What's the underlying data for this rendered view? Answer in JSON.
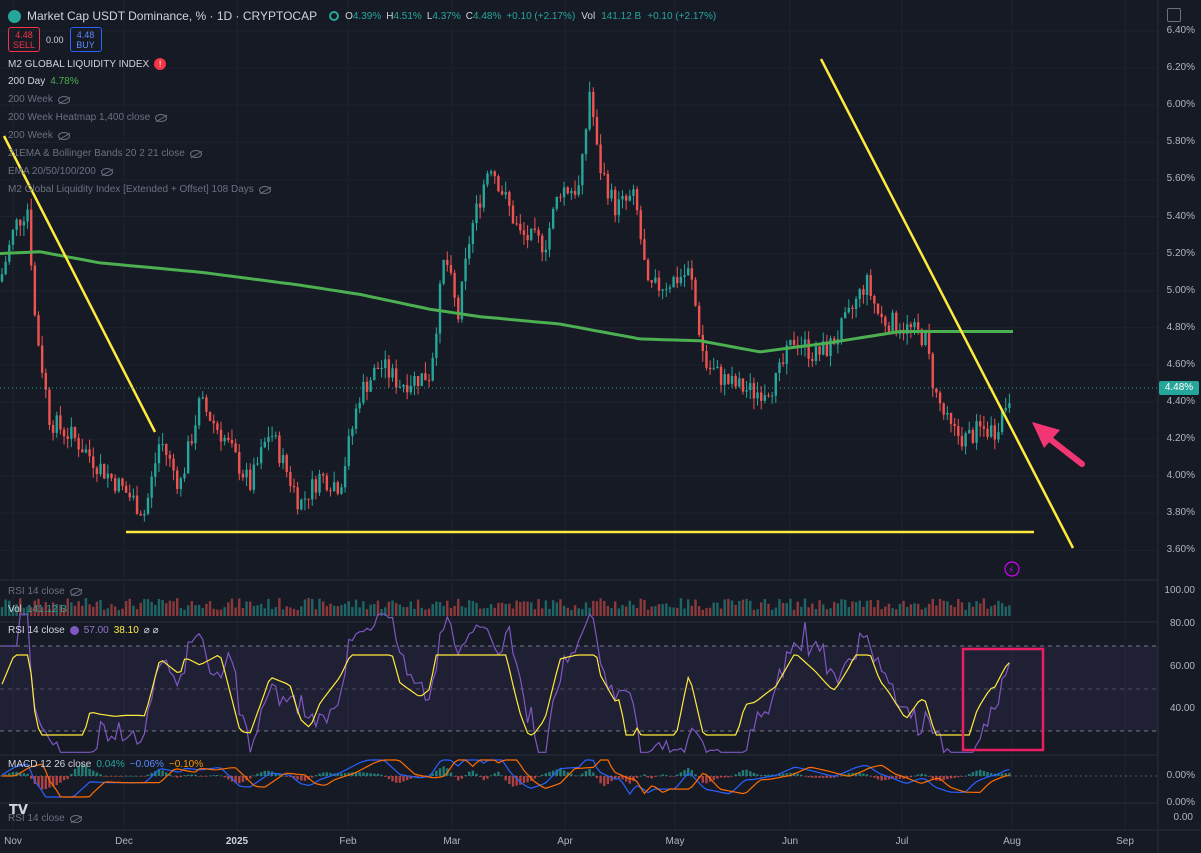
{
  "header": {
    "symbol_title": "Market Cap USDT Dominance, % · 1D · CRYPTOCAP",
    "ohlc": [
      {
        "k": "O",
        "v": "4.39%"
      },
      {
        "k": "H",
        "v": "4.51%"
      },
      {
        "k": "L",
        "v": "4.37%"
      },
      {
        "k": "C",
        "v": "4.48%"
      },
      {
        "k": "",
        "v": "+0.10 (+2.17%)"
      }
    ],
    "vol_label": "Vol",
    "vol_value": "141.12 B",
    "vol_change": "+0.10 (+2.17%)",
    "sell_price": "4.48",
    "sell_label": "SELL",
    "spread": "0.00",
    "buy_price": "4.48",
    "buy_label": "BUY"
  },
  "indicators": [
    {
      "name": "M2 GLOBAL LIQUIDITY INDEX",
      "value": "",
      "bright": true,
      "alert": true
    },
    {
      "name": "200 Day",
      "value": "4.78%",
      "bright": true,
      "alert": false
    },
    {
      "name": "200 Week",
      "value": "",
      "bright": false,
      "alert": false
    },
    {
      "name": "200 Week Heatmap 1,400 close",
      "value": "",
      "bright": false,
      "alert": false
    },
    {
      "name": "200 Week",
      "value": "",
      "bright": false,
      "alert": false
    },
    {
      "name": "21EMA & Bollinger Bands 20 2 21 close",
      "value": "",
      "bright": false,
      "alert": false
    },
    {
      "name": "EMA 20/50/100/200",
      "value": "",
      "bright": false,
      "alert": false
    },
    {
      "name": "M2 Global Liquidity Index [Extended + Offset] 108 Days",
      "value": "",
      "bright": false,
      "alert": false
    }
  ],
  "main_pane": {
    "price_axis": [
      "6.40%",
      "6.20%",
      "6.00%",
      "5.80%",
      "5.60%",
      "5.40%",
      "5.20%",
      "5.00%",
      "4.80%",
      "4.60%",
      "4.40%",
      "4.20%",
      "4.00%",
      "3.80%",
      "3.60%"
    ],
    "current_price": "4.48%",
    "ma_color": "#4caf50",
    "trendline_color": "#ffeb3b",
    "up_color": "#26a69a",
    "down_color": "#ef5350"
  },
  "volume_pane": {
    "rsi_hidden_label": "RSI 14 close",
    "vol_label": "Vol",
    "vol_value": "141.12 B",
    "axis": [
      "100.00"
    ]
  },
  "rsi_pane": {
    "label": "RSI 14 close",
    "value1": "57.00",
    "value2": "38.10",
    "extra": "⌀ ⌀",
    "axis": [
      "80.00",
      "60.00",
      "40.00"
    ],
    "rsi_color": "#7e57c2",
    "ma_color": "#ffeb3b",
    "highlight_color": "#e91e63"
  },
  "macd_pane": {
    "label": "MACD 12 26 close",
    "v1": "0.04%",
    "v2": "−0.06%",
    "v3": "−0.10%",
    "axis": [
      "0.00%",
      "0.00%"
    ]
  },
  "bottom_pane": {
    "label": "RSI 14 close",
    "axis": [
      "0.00"
    ]
  },
  "time_axis": [
    "Nov",
    "Dec",
    "2025",
    "Feb",
    "Mar",
    "Apr",
    "May",
    "Jun",
    "Jul",
    "Aug",
    "Sep"
  ],
  "logo_text": "TV"
}
